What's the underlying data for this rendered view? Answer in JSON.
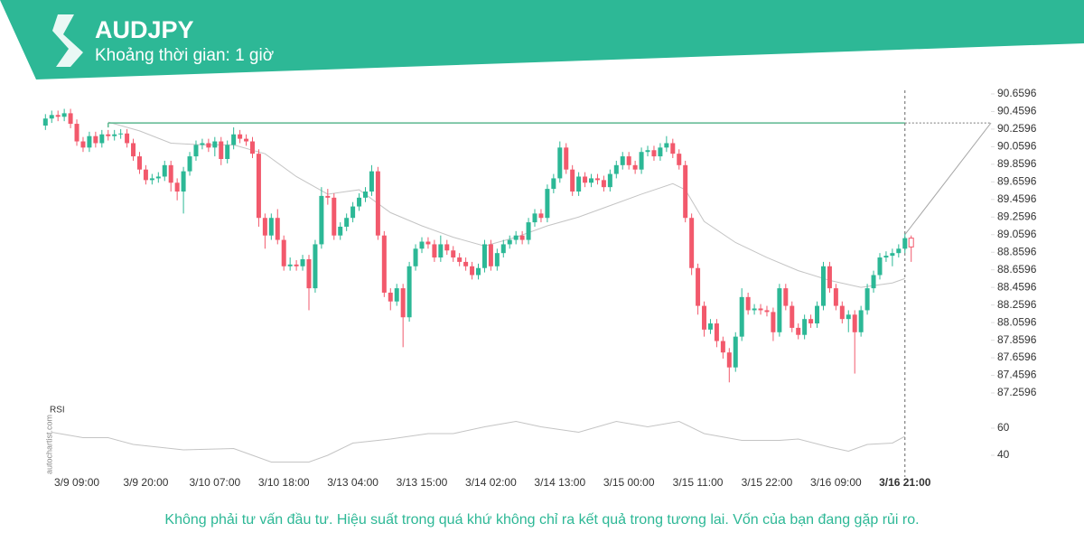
{
  "header": {
    "title": "AUDJPY",
    "subtitle": "Khoảng thời gian: 1 giờ"
  },
  "footer": "Không phải tư vấn đầu tư. Hiệu suất trong quá khứ không chỉ ra kết quả trong tương lai. Vốn của bạn đang gặp rủi ro.",
  "watermark": "autochartist.com",
  "chart_data": {
    "type": "candlestick",
    "categories": [
      null,
      null,
      null,
      null,
      null,
      "3/9 09:00",
      null,
      null,
      null,
      null,
      null,
      null,
      null,
      null,
      null,
      null,
      "3/9 20:00",
      null,
      null,
      null,
      null,
      null,
      null,
      null,
      null,
      null,
      null,
      "3/10 07:00",
      null,
      null,
      null,
      null,
      null,
      null,
      null,
      null,
      null,
      null,
      "3/10 18:00",
      null,
      null,
      null,
      null,
      null,
      null,
      null,
      null,
      null,
      null,
      "3/13 04:00",
      null,
      null,
      null,
      null,
      null,
      null,
      null,
      null,
      null,
      null,
      "3/13 15:00",
      null,
      null,
      null,
      null,
      null,
      null,
      null,
      null,
      null,
      null,
      "3/14 02:00",
      null,
      null,
      null,
      null,
      null,
      null,
      null,
      null,
      null,
      null,
      "3/14 13:00",
      null,
      null,
      null,
      null,
      null,
      null,
      null,
      null,
      null,
      null,
      "3/15 00:00",
      null,
      null,
      null,
      null,
      null,
      null,
      null,
      null,
      null,
      null,
      "3/15 11:00",
      null,
      null,
      null,
      null,
      null,
      null,
      null,
      null,
      null,
      null,
      "3/15 22:00",
      null,
      null,
      null,
      null,
      null,
      null,
      null,
      null,
      null,
      null,
      "3/16 09:00",
      null,
      null,
      null,
      null,
      null,
      null,
      null,
      null,
      null,
      null,
      "3/16 21:00",
      null
    ],
    "open": [
      90.3,
      90.38,
      90.42,
      90.4,
      90.44,
      90.32,
      90.12,
      90.05,
      90.18,
      90.1,
      90.2,
      90.18,
      90.2,
      90.21,
      90.1,
      89.95,
      89.8,
      89.68,
      89.7,
      89.72,
      89.85,
      89.65,
      89.55,
      89.78,
      89.95,
      90.08,
      90.1,
      90.05,
      90.12,
      89.92,
      90.08,
      90.2,
      90.15,
      90.12,
      89.98,
      89.25,
      89.05,
      89.25,
      89.0,
      88.7,
      88.72,
      88.7,
      88.78,
      88.45,
      88.95,
      89.5,
      89.48,
      89.05,
      89.15,
      89.25,
      89.38,
      89.48,
      89.55,
      89.78,
      89.05,
      88.4,
      88.3,
      88.45,
      88.12,
      88.7,
      88.9,
      88.98,
      88.95,
      88.8,
      88.95,
      88.88,
      88.8,
      88.75,
      88.7,
      88.6,
      88.68,
      88.95,
      88.7,
      88.85,
      88.95,
      89.0,
      89.05,
      89.0,
      89.2,
      89.3,
      89.25,
      89.58,
      89.7,
      90.05,
      89.8,
      89.55,
      89.72,
      89.65,
      89.7,
      89.68,
      89.6,
      89.75,
      89.85,
      89.95,
      89.85,
      89.8,
      90.0,
      90.02,
      89.95,
      90.05,
      90.1,
      89.98,
      89.85,
      89.25,
      88.68,
      88.25,
      87.98,
      88.05,
      87.85,
      87.72,
      87.55,
      87.9,
      88.35,
      88.2,
      88.22,
      88.2,
      88.18,
      87.95,
      88.45,
      88.25,
      88.0,
      87.92,
      88.1,
      88.05,
      88.25,
      88.7,
      88.45,
      88.25,
      88.1,
      88.15,
      87.95,
      88.2,
      88.45,
      88.6,
      88.8,
      88.82,
      88.85,
      88.9,
      89.02
    ],
    "high": [
      90.43,
      90.47,
      90.47,
      90.49,
      90.49,
      90.37,
      90.17,
      90.23,
      90.23,
      90.25,
      90.25,
      90.25,
      90.26,
      90.26,
      90.15,
      90.0,
      89.85,
      89.75,
      89.77,
      89.9,
      89.9,
      89.7,
      89.83,
      90.0,
      90.13,
      90.15,
      90.15,
      90.17,
      90.17,
      90.13,
      90.28,
      90.25,
      90.2,
      90.17,
      90.03,
      89.3,
      89.3,
      89.35,
      89.05,
      88.8,
      88.77,
      88.83,
      88.83,
      89.0,
      89.6,
      89.58,
      89.53,
      89.2,
      89.3,
      89.43,
      89.53,
      89.6,
      89.85,
      89.83,
      89.1,
      88.45,
      88.5,
      88.5,
      88.75,
      88.95,
      89.03,
      89.03,
      89.0,
      89.05,
      89.0,
      88.93,
      88.85,
      88.8,
      88.75,
      88.73,
      89.0,
      89.0,
      88.9,
      89.0,
      89.05,
      89.1,
      89.1,
      89.25,
      89.35,
      89.35,
      89.63,
      89.75,
      90.12,
      90.1,
      89.85,
      89.77,
      89.77,
      89.75,
      89.75,
      89.73,
      89.8,
      89.9,
      90.0,
      90.0,
      89.9,
      90.05,
      90.07,
      90.07,
      90.1,
      90.18,
      90.15,
      90.03,
      89.9,
      89.3,
      88.73,
      88.3,
      88.1,
      88.1,
      87.9,
      87.77,
      87.95,
      88.45,
      88.4,
      88.27,
      88.27,
      88.25,
      88.23,
      88.5,
      88.5,
      88.3,
      88.05,
      88.15,
      88.15,
      88.3,
      88.75,
      88.75,
      88.5,
      88.3,
      88.2,
      88.2,
      88.25,
      88.5,
      88.65,
      88.85,
      88.87,
      88.9,
      88.95,
      89.07,
      89.05
    ],
    "low": [
      90.25,
      90.33,
      90.35,
      90.35,
      90.27,
      90.07,
      90.0,
      90.0,
      90.05,
      90.05,
      90.13,
      90.13,
      90.15,
      90.05,
      89.9,
      89.75,
      89.63,
      89.63,
      89.65,
      89.67,
      89.55,
      89.45,
      89.3,
      89.73,
      89.9,
      90.03,
      90.0,
      89.95,
      89.85,
      89.87,
      90.03,
      90.1,
      90.07,
      89.93,
      89.15,
      88.9,
      89.0,
      88.95,
      88.65,
      88.65,
      88.65,
      88.65,
      88.2,
      88.4,
      88.9,
      89.4,
      89.0,
      89.0,
      89.1,
      89.2,
      89.33,
      89.43,
      89.5,
      89.0,
      88.35,
      88.2,
      88.25,
      87.78,
      88.07,
      88.65,
      88.85,
      88.9,
      88.75,
      88.75,
      88.83,
      88.75,
      88.7,
      88.65,
      88.55,
      88.55,
      88.63,
      88.65,
      88.65,
      88.8,
      88.9,
      88.95,
      88.95,
      88.95,
      89.15,
      89.2,
      89.2,
      89.53,
      89.65,
      89.75,
      89.5,
      89.5,
      89.6,
      89.6,
      89.63,
      89.55,
      89.55,
      89.7,
      89.8,
      89.8,
      89.75,
      89.75,
      89.95,
      89.9,
      89.9,
      90.0,
      89.93,
      89.8,
      89.2,
      88.6,
      88.15,
      87.9,
      87.93,
      87.78,
      87.65,
      87.38,
      87.5,
      87.85,
      88.15,
      88.15,
      88.15,
      88.13,
      87.85,
      87.9,
      88.2,
      87.95,
      87.87,
      87.87,
      88.0,
      88.0,
      88.2,
      88.4,
      88.2,
      88.05,
      87.95,
      87.48,
      87.9,
      88.15,
      88.4,
      88.55,
      88.75,
      88.7,
      88.8,
      88.85,
      88.75
    ],
    "close": [
      90.38,
      90.42,
      90.4,
      90.44,
      90.32,
      90.12,
      90.05,
      90.18,
      90.1,
      90.2,
      90.18,
      90.2,
      90.21,
      90.1,
      89.95,
      89.8,
      89.68,
      89.7,
      89.72,
      89.85,
      89.65,
      89.55,
      89.78,
      89.95,
      90.08,
      90.1,
      90.05,
      90.12,
      89.92,
      90.08,
      90.2,
      90.15,
      90.12,
      89.98,
      89.25,
      89.05,
      89.25,
      89.0,
      88.7,
      88.72,
      88.7,
      88.78,
      88.45,
      88.95,
      89.5,
      89.48,
      89.05,
      89.15,
      89.25,
      89.38,
      89.48,
      89.55,
      89.78,
      89.05,
      88.4,
      88.3,
      88.45,
      88.12,
      88.7,
      88.9,
      88.98,
      88.95,
      88.8,
      88.95,
      88.88,
      88.8,
      88.75,
      88.7,
      88.6,
      88.68,
      88.95,
      88.7,
      88.85,
      88.95,
      89.0,
      89.05,
      89.0,
      89.2,
      89.3,
      89.25,
      89.58,
      89.7,
      90.05,
      89.8,
      89.55,
      89.72,
      89.65,
      89.7,
      89.68,
      89.6,
      89.75,
      89.85,
      89.95,
      89.85,
      89.8,
      90.0,
      90.02,
      89.95,
      90.05,
      90.1,
      89.98,
      89.85,
      89.25,
      88.68,
      88.25,
      87.98,
      88.05,
      87.85,
      87.72,
      87.55,
      87.9,
      88.35,
      88.2,
      88.22,
      88.2,
      88.18,
      87.95,
      88.45,
      88.25,
      88.0,
      87.92,
      88.1,
      88.05,
      88.25,
      88.7,
      88.45,
      88.25,
      88.1,
      88.15,
      87.95,
      88.2,
      88.45,
      88.6,
      88.8,
      88.82,
      88.85,
      88.9,
      89.02,
      88.92
    ],
    "up_color": "#2cb896",
    "down_color": "#f2596c",
    "ylim": [
      87.2596,
      90.6596
    ],
    "yticks": [
      90.6596,
      90.4596,
      90.2596,
      90.0596,
      89.8596,
      89.6596,
      89.4596,
      89.2596,
      89.0596,
      88.8596,
      88.6596,
      88.4596,
      88.2596,
      88.0596,
      87.8596,
      87.6596,
      87.4596,
      87.2596
    ],
    "moving_average": {
      "color": "#c4c4c4",
      "x": [
        10,
        15,
        20,
        25,
        30,
        35,
        40,
        45,
        50,
        55,
        60,
        65,
        70,
        75,
        80,
        85,
        90,
        95,
        100,
        102,
        105,
        110,
        115,
        120,
        125,
        130,
        135,
        137
      ],
      "values": [
        90.34,
        90.24,
        90.1,
        90.08,
        90.08,
        89.98,
        89.72,
        89.52,
        89.57,
        89.31,
        89.16,
        89.03,
        88.93,
        89.03,
        89.16,
        89.26,
        89.39,
        89.52,
        89.64,
        89.57,
        89.21,
        88.97,
        88.8,
        88.65,
        88.54,
        88.46,
        88.51,
        88.56
      ]
    },
    "resistance": {
      "value": 90.33,
      "start": 10,
      "color": "#5cb88f"
    },
    "forecast": {
      "from": 89.06,
      "to": 90.33,
      "color": "#a8a8a8"
    },
    "rsi": {
      "label": "RSI",
      "color": "#c4c4c4",
      "ylim": [
        30,
        70
      ],
      "yticks": [
        60,
        40
      ],
      "x": [
        1,
        6,
        10,
        14,
        22,
        30,
        33,
        36,
        42,
        45,
        49,
        55,
        61,
        65,
        70,
        75,
        79,
        85,
        91,
        96,
        101,
        105,
        111,
        117,
        120,
        125,
        128,
        131,
        135,
        137
      ],
      "values": [
        57,
        53,
        53,
        48,
        44,
        45,
        40,
        35,
        35,
        40,
        49,
        52,
        56,
        56,
        61,
        65,
        61,
        57,
        65,
        61,
        65,
        56,
        51,
        51,
        52,
        46,
        43,
        48,
        49,
        54
      ]
    }
  }
}
